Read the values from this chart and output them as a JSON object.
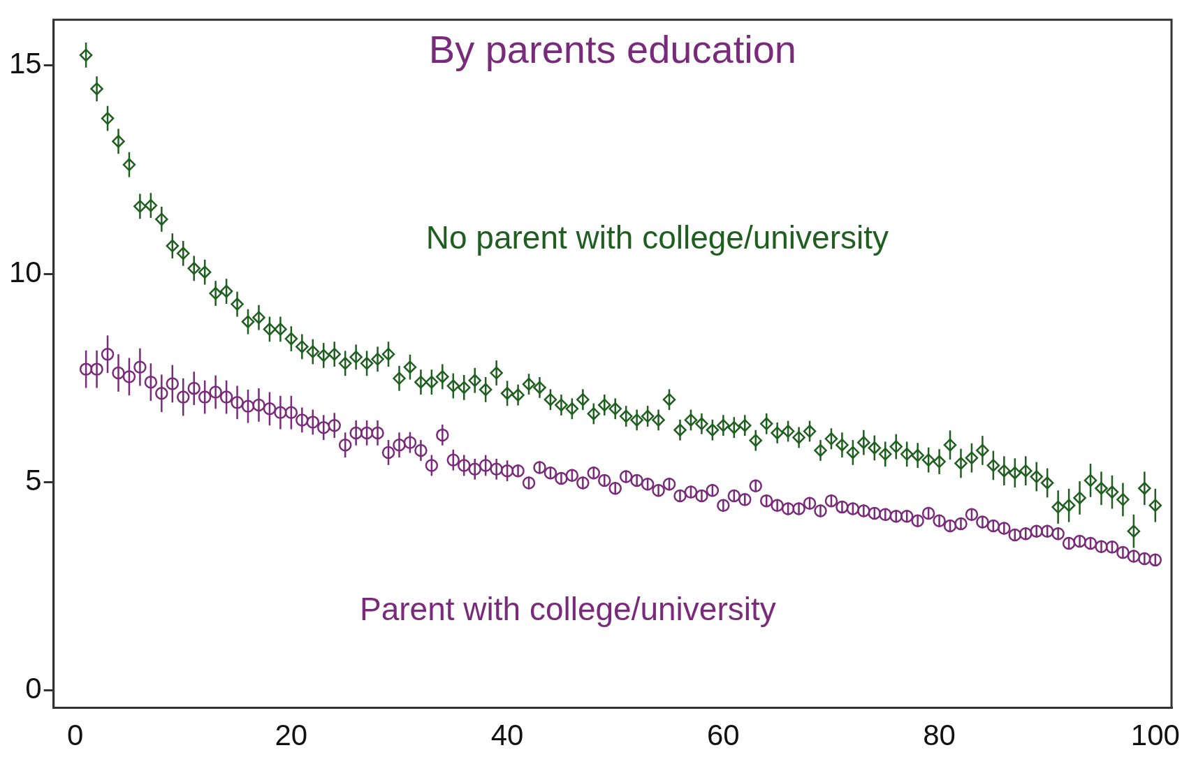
{
  "chart_data": {
    "type": "scatter",
    "title": "By parents education",
    "x": [
      1,
      2,
      3,
      4,
      5,
      6,
      7,
      8,
      9,
      10,
      11,
      12,
      13,
      14,
      15,
      16,
      17,
      18,
      19,
      20,
      21,
      22,
      23,
      24,
      25,
      26,
      27,
      28,
      29,
      30,
      31,
      32,
      33,
      34,
      35,
      36,
      37,
      38,
      39,
      40,
      41,
      42,
      43,
      44,
      45,
      46,
      47,
      48,
      49,
      50,
      51,
      52,
      53,
      54,
      55,
      56,
      57,
      58,
      59,
      60,
      61,
      62,
      63,
      64,
      65,
      66,
      67,
      68,
      69,
      70,
      71,
      72,
      73,
      74,
      75,
      76,
      77,
      78,
      79,
      80,
      81,
      82,
      83,
      84,
      85,
      86,
      87,
      88,
      89,
      90,
      91,
      92,
      93,
      94,
      95,
      96,
      97,
      98,
      99,
      100
    ],
    "series": [
      {
        "name": "No parent with college/university",
        "color": "#1e5e1e",
        "marker": "diamond",
        "values": [
          15.25,
          14.44,
          13.73,
          13.18,
          12.62,
          11.62,
          11.64,
          11.31,
          10.67,
          10.49,
          10.13,
          10.04,
          9.53,
          9.58,
          9.27,
          8.85,
          8.95,
          8.67,
          8.67,
          8.44,
          8.25,
          8.13,
          8.04,
          8.07,
          7.85,
          8.0,
          7.85,
          7.95,
          8.07,
          7.49,
          7.76,
          7.4,
          7.4,
          7.53,
          7.31,
          7.27,
          7.44,
          7.22,
          7.62,
          7.13,
          7.09,
          7.35,
          7.27,
          6.98,
          6.85,
          6.76,
          6.98,
          6.64,
          6.85,
          6.76,
          6.58,
          6.49,
          6.58,
          6.49,
          6.98,
          6.25,
          6.49,
          6.4,
          6.25,
          6.36,
          6.31,
          6.36,
          6.0,
          6.4,
          6.18,
          6.22,
          6.07,
          6.22,
          5.76,
          6.04,
          5.89,
          5.71,
          5.95,
          5.82,
          5.67,
          5.85,
          5.67,
          5.64,
          5.53,
          5.49,
          5.89,
          5.45,
          5.58,
          5.76,
          5.4,
          5.27,
          5.22,
          5.27,
          5.13,
          4.98,
          4.4,
          4.44,
          4.62,
          5.04,
          4.85,
          4.76,
          4.58,
          3.82,
          4.85,
          4.44
        ],
        "errors": [
          0.3,
          0.3,
          0.3,
          0.3,
          0.3,
          0.3,
          0.3,
          0.3,
          0.3,
          0.3,
          0.3,
          0.3,
          0.3,
          0.3,
          0.3,
          0.3,
          0.3,
          0.3,
          0.3,
          0.3,
          0.3,
          0.3,
          0.3,
          0.3,
          0.3,
          0.3,
          0.3,
          0.3,
          0.3,
          0.3,
          0.3,
          0.3,
          0.3,
          0.3,
          0.3,
          0.3,
          0.3,
          0.3,
          0.3,
          0.3,
          0.25,
          0.25,
          0.25,
          0.25,
          0.25,
          0.25,
          0.25,
          0.25,
          0.25,
          0.25,
          0.25,
          0.25,
          0.25,
          0.25,
          0.25,
          0.25,
          0.25,
          0.25,
          0.25,
          0.25,
          0.25,
          0.25,
          0.25,
          0.25,
          0.25,
          0.25,
          0.25,
          0.25,
          0.25,
          0.25,
          0.3,
          0.3,
          0.3,
          0.3,
          0.3,
          0.3,
          0.3,
          0.3,
          0.3,
          0.3,
          0.35,
          0.35,
          0.35,
          0.35,
          0.35,
          0.35,
          0.35,
          0.35,
          0.35,
          0.35,
          0.4,
          0.4,
          0.4,
          0.4,
          0.4,
          0.4,
          0.4,
          0.4,
          0.4,
          0.4
        ]
      },
      {
        "name": "Parent with college/university",
        "color": "#7a2a7a",
        "marker": "circle",
        "values": [
          7.71,
          7.71,
          8.07,
          7.62,
          7.53,
          7.76,
          7.4,
          7.13,
          7.36,
          7.04,
          7.25,
          7.04,
          7.16,
          7.04,
          6.91,
          6.82,
          6.85,
          6.76,
          6.67,
          6.67,
          6.49,
          6.44,
          6.31,
          6.36,
          5.89,
          6.18,
          6.18,
          6.18,
          5.71,
          5.89,
          5.95,
          5.76,
          5.4,
          6.13,
          5.53,
          5.4,
          5.31,
          5.4,
          5.31,
          5.27,
          5.27,
          4.98,
          5.35,
          5.22,
          5.09,
          5.16,
          4.98,
          5.22,
          5.04,
          4.85,
          5.13,
          5.04,
          4.95,
          4.8,
          4.95,
          4.67,
          4.76,
          4.67,
          4.8,
          4.44,
          4.67,
          4.58,
          4.91,
          4.55,
          4.44,
          4.36,
          4.36,
          4.49,
          4.31,
          4.55,
          4.4,
          4.36,
          4.31,
          4.25,
          4.22,
          4.18,
          4.18,
          4.07,
          4.25,
          4.07,
          3.95,
          4.0,
          4.22,
          4.04,
          3.95,
          3.89,
          3.73,
          3.76,
          3.82,
          3.82,
          3.76,
          3.53,
          3.58,
          3.53,
          3.45,
          3.44,
          3.31,
          3.22,
          3.16,
          3.13
        ],
        "errors": [
          0.45,
          0.45,
          0.45,
          0.45,
          0.45,
          0.45,
          0.45,
          0.45,
          0.45,
          0.45,
          0.4,
          0.4,
          0.4,
          0.4,
          0.4,
          0.4,
          0.4,
          0.4,
          0.4,
          0.4,
          0.3,
          0.3,
          0.3,
          0.3,
          0.3,
          0.3,
          0.3,
          0.3,
          0.3,
          0.3,
          0.25,
          0.25,
          0.25,
          0.25,
          0.25,
          0.25,
          0.25,
          0.25,
          0.25,
          0.25,
          0.15,
          0.15,
          0.15,
          0.15,
          0.15,
          0.15,
          0.15,
          0.15,
          0.15,
          0.15,
          0.15,
          0.15,
          0.15,
          0.15,
          0.15,
          0.15,
          0.15,
          0.15,
          0.15,
          0.15,
          0.15,
          0.15,
          0.15,
          0.15,
          0.15,
          0.15,
          0.15,
          0.15,
          0.15,
          0.15,
          0.15,
          0.15,
          0.15,
          0.15,
          0.15,
          0.15,
          0.15,
          0.15,
          0.15,
          0.15,
          0.15,
          0.15,
          0.15,
          0.15,
          0.15,
          0.15,
          0.15,
          0.15,
          0.15,
          0.15,
          0.15,
          0.15,
          0.15,
          0.15,
          0.15,
          0.15,
          0.15,
          0.15,
          0.15,
          0.15
        ]
      }
    ],
    "xlim": [
      -2,
      101.5
    ],
    "ylim": [
      -0.42,
      16.1
    ],
    "xticks": [
      0,
      20,
      40,
      60,
      80,
      100
    ],
    "yticks": [
      0,
      5,
      10,
      15
    ],
    "grid": false,
    "legend": false
  }
}
